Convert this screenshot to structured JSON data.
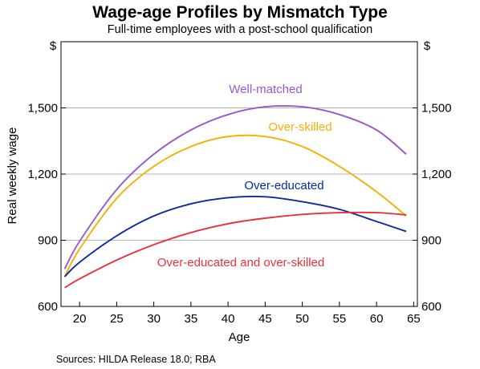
{
  "chart_data": {
    "type": "line",
    "title": "Wage-age Profiles by Mismatch Type",
    "subtitle": "Full-time employees with a post-school qualification",
    "xlabel": "Age",
    "ylabel": "Real weekly wage",
    "y_unit": "$",
    "xlim": [
      17.5,
      65.5
    ],
    "ylim": [
      600,
      1800
    ],
    "x_ticks": [
      "20",
      "25",
      "30",
      "35",
      "40",
      "45",
      "50",
      "55",
      "60",
      "65"
    ],
    "y_ticks": [
      "600",
      "900",
      "1,200",
      "1,500"
    ],
    "y_tick_values": [
      600,
      900,
      1200,
      1500
    ],
    "grid": true,
    "x": [
      18,
      20,
      25,
      30,
      35,
      40,
      45,
      50,
      55,
      60,
      64
    ],
    "series": [
      {
        "name": "Well-matched",
        "color": "#9b59c7",
        "values": [
          770,
          895,
          1130,
          1290,
          1400,
          1470,
          1505,
          1505,
          1470,
          1400,
          1290
        ]
      },
      {
        "name": "Over-skilled",
        "color": "#f5b000",
        "values": [
          735,
          860,
          1090,
          1235,
          1325,
          1370,
          1370,
          1325,
          1235,
          1120,
          1010
        ]
      },
      {
        "name": "Over-educated",
        "color": "#0a2a9e",
        "values": [
          735,
          800,
          920,
          1010,
          1065,
          1093,
          1097,
          1075,
          1040,
          985,
          940
        ]
      },
      {
        "name": "Over-educated and over-skilled",
        "color": "#e8313f",
        "values": [
          685,
          725,
          810,
          880,
          935,
          975,
          1000,
          1017,
          1025,
          1025,
          1015
        ]
      }
    ],
    "annotations": [
      {
        "text": "Well-matched",
        "series": "Well-matched"
      },
      {
        "text": "Over-skilled",
        "series": "Over-skilled"
      },
      {
        "text": "Over-educated",
        "series": "Over-educated"
      },
      {
        "text": "Over-educated and over-skilled",
        "series": "Over-educated and over-skilled"
      }
    ],
    "source": "Sources: HILDA Release 18.0; RBA"
  }
}
